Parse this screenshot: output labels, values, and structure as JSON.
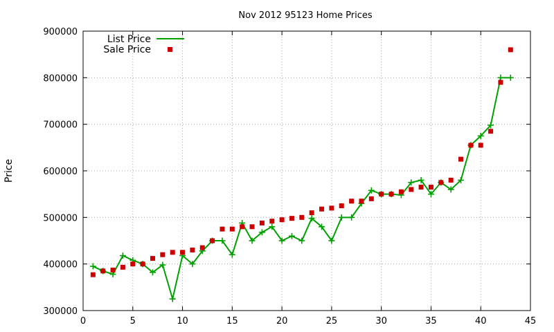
{
  "chart_data": {
    "type": "line",
    "title": "Nov 2012 95123 Home Prices",
    "xlabel": "",
    "ylabel": "Price",
    "xlim": [
      0,
      45
    ],
    "ylim": [
      300000,
      900000
    ],
    "xticks": [
      0,
      5,
      10,
      15,
      20,
      25,
      30,
      35,
      40,
      45
    ],
    "yticks": [
      300000,
      400000,
      500000,
      600000,
      700000,
      800000,
      900000
    ],
    "grid": true,
    "legend_position": "top-left",
    "series": [
      {
        "name": "List Price",
        "style": "line+cross",
        "color": "#00a000",
        "x": [
          1,
          2,
          3,
          4,
          5,
          6,
          7,
          8,
          9,
          10,
          11,
          12,
          13,
          14,
          15,
          16,
          17,
          18,
          19,
          20,
          21,
          22,
          23,
          24,
          25,
          26,
          27,
          28,
          29,
          30,
          31,
          32,
          33,
          34,
          35,
          36,
          37,
          38,
          39,
          40,
          41,
          42,
          43
        ],
        "values": [
          395000,
          385000,
          378000,
          418000,
          408000,
          400000,
          382000,
          398000,
          325000,
          418000,
          400000,
          428000,
          450000,
          450000,
          420000,
          488000,
          450000,
          468000,
          480000,
          450000,
          460000,
          450000,
          498000,
          480000,
          450000,
          500000,
          500000,
          530000,
          558000,
          550000,
          550000,
          548000,
          575000,
          580000,
          550000,
          575000,
          560000,
          580000,
          655000,
          675000,
          698000,
          800000,
          800000
        ]
      },
      {
        "name": "Sale Price",
        "style": "square",
        "color": "#cc0000",
        "x": [
          1,
          2,
          3,
          4,
          5,
          6,
          7,
          8,
          9,
          10,
          11,
          12,
          13,
          14,
          15,
          16,
          17,
          18,
          19,
          20,
          21,
          22,
          23,
          24,
          25,
          26,
          27,
          28,
          29,
          30,
          31,
          32,
          33,
          34,
          35,
          36,
          37,
          38,
          39,
          40,
          41,
          42,
          43
        ],
        "values": [
          377000,
          385000,
          387000,
          393000,
          400000,
          400000,
          412000,
          420000,
          425000,
          425000,
          430000,
          435000,
          450000,
          475000,
          475000,
          480000,
          480000,
          488000,
          492000,
          495000,
          498000,
          500000,
          510000,
          518000,
          520000,
          525000,
          535000,
          535000,
          540000,
          550000,
          550000,
          555000,
          560000,
          565000,
          565000,
          575000,
          580000,
          625000,
          655000,
          655000,
          685000,
          790000,
          860000
        ]
      }
    ]
  }
}
